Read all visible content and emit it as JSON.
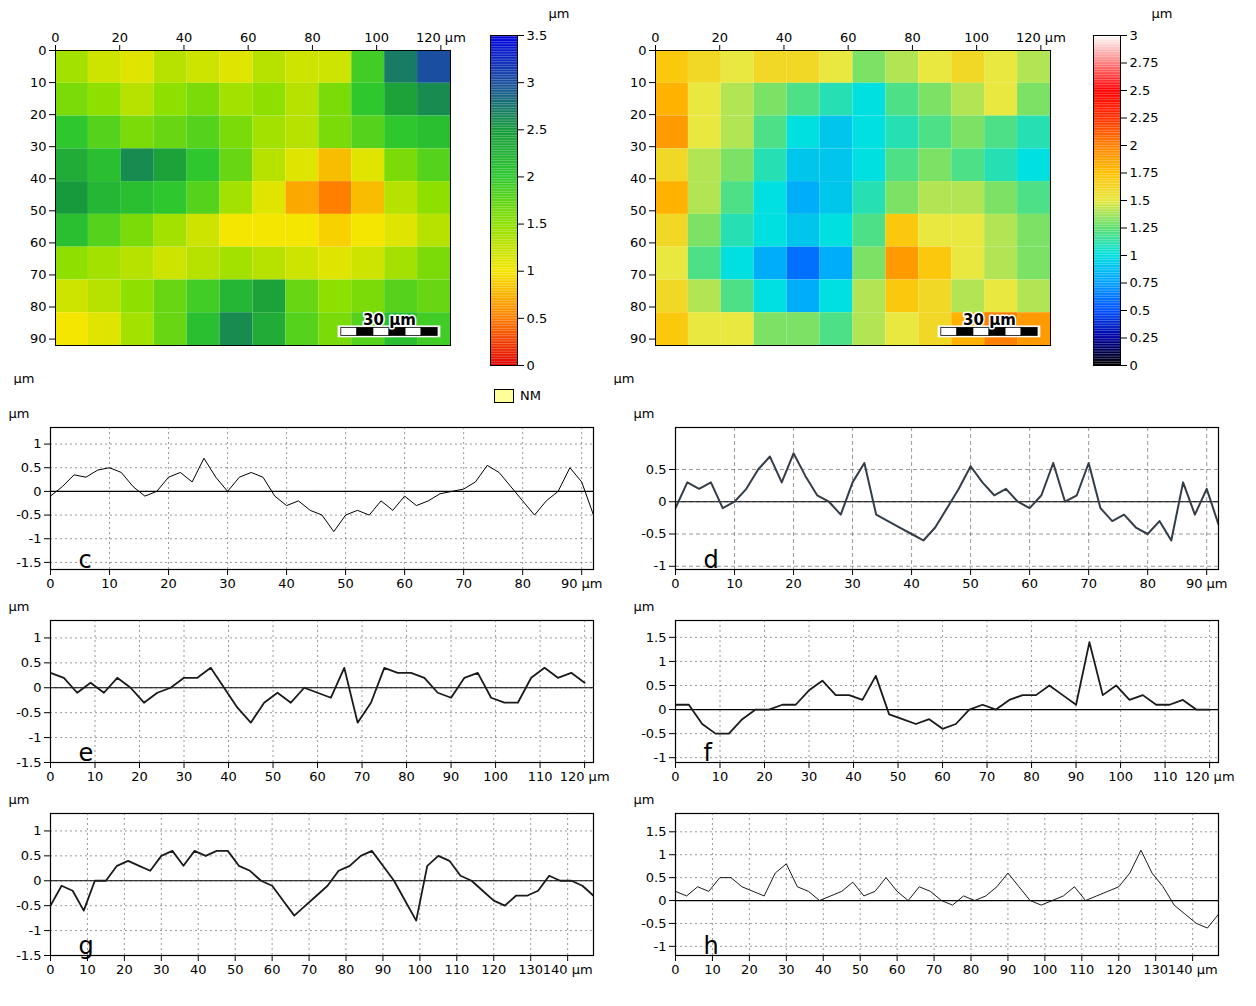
{
  "chart_data": [
    {
      "type": "heatmap",
      "xlim": [
        0,
        123
      ],
      "xticks": [
        0,
        20,
        40,
        60,
        80,
        100,
        {
          "value": 120,
          "label": "120 µm"
        }
      ],
      "ylim": [
        0,
        92
      ],
      "yticks": [
        0,
        10,
        20,
        30,
        40,
        50,
        60,
        70,
        80,
        90
      ],
      "y_label": "µm",
      "cells": [
        [
          1.4,
          1.2,
          1.1,
          1.3,
          1.2,
          1.1,
          1.3,
          1.2,
          1.2,
          1.9,
          2.7,
          3.0
        ],
        [
          1.6,
          1.5,
          1.3,
          1.5,
          1.6,
          1.4,
          1.5,
          1.3,
          1.6,
          2.0,
          2.4,
          2.6
        ],
        [
          2.0,
          1.8,
          1.6,
          1.7,
          1.8,
          1.6,
          1.4,
          1.3,
          1.6,
          1.8,
          2.0,
          2.1
        ],
        [
          2.3,
          2.1,
          2.6,
          2.4,
          2.0,
          1.7,
          1.3,
          1.1,
          0.8,
          1.1,
          1.6,
          1.8
        ],
        [
          2.5,
          2.2,
          2.1,
          2.0,
          1.8,
          1.4,
          1.1,
          0.7,
          0.5,
          0.8,
          1.3,
          1.5
        ],
        [
          2.1,
          1.8,
          1.6,
          1.4,
          1.2,
          1.0,
          1.0,
          1.0,
          0.9,
          1.0,
          1.1,
          1.3
        ],
        [
          1.5,
          1.4,
          1.3,
          1.2,
          1.3,
          1.4,
          1.3,
          1.2,
          1.1,
          1.2,
          1.4,
          1.6
        ],
        [
          1.2,
          1.3,
          1.5,
          1.7,
          1.9,
          2.2,
          2.4,
          1.7,
          1.5,
          1.6,
          1.8,
          1.7
        ],
        [
          1.0,
          1.1,
          1.4,
          1.7,
          2.1,
          2.6,
          2.3,
          1.8,
          1.6,
          1.8,
          2.1,
          1.9
        ]
      ],
      "colorbar": {
        "range": [
          0,
          3.5
        ],
        "ticks": [
          0,
          0.5,
          1,
          1.5,
          2,
          2.5,
          3,
          3.5
        ],
        "label": "µm",
        "stops": [
          0,
          0.5,
          1,
          1.5,
          2,
          2.5,
          3,
          3.5
        ],
        "colors": [
          "#e00000",
          "#ff7f00",
          "#f5e600",
          "#8ee000",
          "#2ec82e",
          "#169a3c",
          "#1a4fa0",
          "#0000e0"
        ]
      },
      "scale_bar": {
        "length": 30,
        "label": "30 µm"
      },
      "nm_label": "NM"
    },
    {
      "type": "heatmap",
      "xlim": [
        0,
        123
      ],
      "xticks": [
        0,
        20,
        40,
        60,
        80,
        100,
        {
          "value": 120,
          "label": "120 µm"
        }
      ],
      "ylim": [
        0,
        92
      ],
      "yticks": [
        0,
        10,
        20,
        30,
        40,
        50,
        60,
        70,
        80,
        90
      ],
      "y_label": "µm",
      "cells": [
        [
          1.7,
          1.6,
          1.5,
          1.6,
          1.6,
          1.5,
          1.3,
          1.4,
          1.5,
          1.6,
          1.5,
          1.4
        ],
        [
          1.8,
          1.5,
          1.4,
          1.3,
          1.2,
          1.1,
          1.0,
          1.2,
          1.3,
          1.4,
          1.5,
          1.3
        ],
        [
          1.9,
          1.5,
          1.4,
          1.2,
          1.0,
          0.9,
          1.0,
          1.1,
          1.2,
          1.3,
          1.2,
          1.1
        ],
        [
          1.6,
          1.4,
          1.3,
          1.1,
          0.9,
          0.9,
          1.0,
          1.2,
          1.3,
          1.2,
          1.1,
          1.0
        ],
        [
          1.8,
          1.4,
          1.2,
          1.0,
          0.8,
          0.9,
          1.1,
          1.3,
          1.4,
          1.4,
          1.3,
          1.2
        ],
        [
          1.6,
          1.3,
          1.1,
          1.0,
          0.9,
          1.0,
          1.2,
          1.7,
          1.5,
          1.5,
          1.4,
          1.3
        ],
        [
          1.5,
          1.2,
          1.0,
          0.8,
          0.6,
          0.8,
          1.3,
          1.9,
          1.7,
          1.5,
          1.4,
          1.3
        ],
        [
          1.6,
          1.4,
          1.2,
          1.0,
          0.8,
          1.0,
          1.4,
          1.7,
          1.6,
          1.4,
          1.5,
          1.4
        ],
        [
          1.7,
          1.5,
          1.5,
          1.3,
          1.3,
          1.2,
          1.4,
          1.5,
          1.6,
          1.8,
          2.0,
          1.9
        ]
      ],
      "colorbar": {
        "range": [
          0,
          3
        ],
        "ticks": [
          0,
          0.25,
          0.5,
          0.75,
          1,
          1.25,
          1.5,
          1.75,
          2,
          2.25,
          2.5,
          2.75,
          3
        ],
        "label": "µm",
        "stops": [
          0,
          0.25,
          0.5,
          0.75,
          1,
          1.25,
          1.5,
          1.75,
          2,
          2.25,
          2.5,
          3
        ],
        "colors": [
          "#000000",
          "#0000a0",
          "#0050ff",
          "#00a0ff",
          "#00e0e0",
          "#60e070",
          "#e8e840",
          "#ffc000",
          "#ff8000",
          "#ff3000",
          "#ff0000",
          "#ffffff"
        ]
      },
      "scale_bar": {
        "length": 30,
        "label": "30 µm"
      }
    },
    {
      "type": "line",
      "label": "c",
      "color": "#000000",
      "grid": true,
      "y_label": "µm",
      "xlim": [
        0,
        92
      ],
      "xticks": [
        0,
        10,
        20,
        30,
        40,
        50,
        60,
        70,
        80,
        {
          "value": 90,
          "label": "90 µm"
        }
      ],
      "ylim": [
        -1.65,
        1.35
      ],
      "yticks": [
        1,
        0.5,
        0,
        -0.5,
        -1,
        -1.5
      ],
      "x": [
        0,
        2,
        4,
        6,
        8,
        10,
        12,
        14,
        16,
        18,
        20,
        22,
        24,
        26,
        28,
        30,
        32,
        34,
        36,
        38,
        40,
        42,
        44,
        46,
        48,
        50,
        52,
        54,
        56,
        58,
        60,
        62,
        64,
        66,
        68,
        70,
        72,
        74,
        76,
        78,
        80,
        82,
        84,
        86,
        88,
        90,
        92
      ],
      "values": [
        -0.1,
        0.1,
        0.35,
        0.3,
        0.45,
        0.5,
        0.4,
        0.1,
        -0.1,
        0.0,
        0.3,
        0.4,
        0.2,
        0.7,
        0.3,
        0.0,
        0.3,
        0.4,
        0.3,
        -0.1,
        -0.3,
        -0.2,
        -0.4,
        -0.5,
        -0.85,
        -0.5,
        -0.4,
        -0.5,
        -0.2,
        -0.4,
        -0.1,
        -0.3,
        -0.2,
        -0.05,
        0.0,
        0.05,
        0.2,
        0.55,
        0.4,
        0.1,
        -0.2,
        -0.5,
        -0.2,
        0.0,
        0.5,
        0.2,
        -0.5
      ]
    },
    {
      "type": "line",
      "label": "d",
      "color": "#333d47",
      "grid": true,
      "y_label": "µm",
      "xlim": [
        0,
        92
      ],
      "xticks": [
        0,
        10,
        20,
        30,
        40,
        50,
        60,
        70,
        80,
        {
          "value": 90,
          "label": "90 µm"
        }
      ],
      "ylim": [
        -1.05,
        1.15
      ],
      "yticks": [
        0.5,
        0,
        -0.5,
        -1
      ],
      "x": [
        0,
        2,
        4,
        6,
        8,
        10,
        12,
        14,
        16,
        18,
        20,
        22,
        24,
        26,
        28,
        30,
        32,
        34,
        36,
        38,
        40,
        42,
        44,
        46,
        48,
        50,
        52,
        54,
        56,
        58,
        60,
        62,
        64,
        66,
        68,
        70,
        72,
        74,
        76,
        78,
        80,
        82,
        84,
        86,
        88,
        90,
        92
      ],
      "values": [
        -0.1,
        0.3,
        0.2,
        0.3,
        -0.1,
        0.0,
        0.2,
        0.5,
        0.7,
        0.3,
        0.75,
        0.4,
        0.1,
        0.0,
        -0.2,
        0.3,
        0.6,
        -0.2,
        -0.3,
        -0.4,
        -0.5,
        -0.6,
        -0.4,
        -0.1,
        0.2,
        0.55,
        0.3,
        0.1,
        0.2,
        0.0,
        -0.1,
        0.1,
        0.6,
        0.0,
        0.1,
        0.6,
        -0.1,
        -0.3,
        -0.2,
        -0.4,
        -0.5,
        -0.3,
        -0.6,
        0.3,
        -0.2,
        0.2,
        -0.35
      ]
    },
    {
      "type": "line",
      "label": "e",
      "color": "#1a1a1a",
      "grid": true,
      "y_label": "µm",
      "xlim": [
        0,
        122
      ],
      "xticks": [
        0,
        10,
        20,
        30,
        40,
        50,
        60,
        70,
        80,
        90,
        100,
        110,
        {
          "value": 120,
          "label": "120 µm"
        }
      ],
      "ylim": [
        -1.5,
        1.35
      ],
      "yticks": [
        1,
        0.5,
        0,
        -0.5,
        -1,
        -1.5
      ],
      "x": [
        0,
        3,
        6,
        9,
        12,
        15,
        18,
        21,
        24,
        27,
        30,
        33,
        36,
        39,
        42,
        45,
        48,
        51,
        54,
        57,
        60,
        63,
        66,
        69,
        72,
        75,
        78,
        81,
        84,
        87,
        90,
        93,
        96,
        99,
        102,
        105,
        108,
        111,
        114,
        117,
        120
      ],
      "values": [
        0.3,
        0.2,
        -0.1,
        0.1,
        -0.1,
        0.2,
        0.0,
        -0.3,
        -0.1,
        0.0,
        0.2,
        0.2,
        0.4,
        0.0,
        -0.4,
        -0.7,
        -0.3,
        -0.1,
        -0.3,
        0.0,
        -0.1,
        -0.2,
        0.4,
        -0.7,
        -0.3,
        0.4,
        0.3,
        0.3,
        0.2,
        -0.1,
        -0.2,
        0.2,
        0.3,
        -0.2,
        -0.3,
        -0.3,
        0.2,
        0.4,
        0.2,
        0.3,
        0.1
      ]
    },
    {
      "type": "line",
      "label": "f",
      "color": "#1a1a1a",
      "grid": true,
      "y_label": "µm",
      "xlim": [
        0,
        122
      ],
      "xticks": [
        0,
        10,
        20,
        30,
        40,
        50,
        60,
        70,
        80,
        90,
        100,
        110,
        {
          "value": 120,
          "label": "120 µm"
        }
      ],
      "ylim": [
        -1.1,
        1.85
      ],
      "yticks": [
        1.5,
        1,
        0.5,
        0,
        -0.5,
        -1
      ],
      "x": [
        0,
        3,
        6,
        9,
        12,
        15,
        18,
        21,
        24,
        27,
        30,
        33,
        36,
        39,
        42,
        45,
        48,
        51,
        54,
        57,
        60,
        63,
        66,
        69,
        72,
        75,
        78,
        81,
        84,
        87,
        90,
        93,
        96,
        99,
        102,
        105,
        108,
        111,
        114,
        117,
        120
      ],
      "values": [
        0.1,
        0.1,
        -0.3,
        -0.5,
        -0.5,
        -0.2,
        0.0,
        0.0,
        0.1,
        0.1,
        0.4,
        0.6,
        0.3,
        0.3,
        0.2,
        0.7,
        -0.1,
        -0.2,
        -0.3,
        -0.2,
        -0.4,
        -0.3,
        0.0,
        0.1,
        0.0,
        0.2,
        0.3,
        0.3,
        0.5,
        0.3,
        0.1,
        1.4,
        0.3,
        0.5,
        0.2,
        0.3,
        0.1,
        0.1,
        0.2,
        0.0,
        0.0
      ]
    },
    {
      "type": "line",
      "label": "g",
      "color": "#1a1a1a",
      "grid": true,
      "y_label": "µm",
      "xlim": [
        0,
        147
      ],
      "xticks": [
        0,
        10,
        20,
        30,
        40,
        50,
        60,
        70,
        80,
        90,
        100,
        110,
        120,
        130,
        {
          "value": 140,
          "label": "140 µm"
        }
      ],
      "ylim": [
        -1.5,
        1.35
      ],
      "yticks": [
        1,
        0.5,
        0,
        -0.5,
        -1,
        -1.5
      ],
      "x": [
        0,
        3,
        6,
        9,
        12,
        15,
        18,
        21,
        24,
        27,
        30,
        33,
        36,
        39,
        42,
        45,
        48,
        51,
        54,
        57,
        60,
        63,
        66,
        69,
        72,
        75,
        78,
        81,
        84,
        87,
        90,
        93,
        96,
        99,
        102,
        105,
        108,
        111,
        114,
        117,
        120,
        123,
        126,
        129,
        132,
        135,
        138,
        141,
        144,
        147
      ],
      "values": [
        -0.5,
        -0.1,
        -0.2,
        -0.6,
        0.0,
        0.0,
        0.3,
        0.4,
        0.3,
        0.2,
        0.5,
        0.6,
        0.3,
        0.6,
        0.5,
        0.6,
        0.6,
        0.3,
        0.2,
        0.0,
        -0.1,
        -0.4,
        -0.7,
        -0.5,
        -0.3,
        -0.1,
        0.2,
        0.3,
        0.5,
        0.6,
        0.3,
        0.0,
        -0.4,
        -0.8,
        0.3,
        0.5,
        0.4,
        0.1,
        0.0,
        -0.2,
        -0.4,
        -0.5,
        -0.3,
        -0.3,
        -0.2,
        0.1,
        0.0,
        0.0,
        -0.1,
        -0.3
      ]
    },
    {
      "type": "line",
      "label": "h",
      "color": "#000000",
      "grid": true,
      "y_label": "µm",
      "xlim": [
        0,
        147
      ],
      "xticks": [
        0,
        10,
        20,
        30,
        40,
        50,
        60,
        70,
        80,
        90,
        100,
        110,
        120,
        130,
        {
          "value": 140,
          "label": "140 µm"
        }
      ],
      "ylim": [
        -1.2,
        1.9
      ],
      "yticks": [
        1.5,
        1,
        0.5,
        0,
        -0.5,
        -1
      ],
      "x": [
        0,
        3,
        6,
        9,
        12,
        15,
        18,
        21,
        24,
        27,
        30,
        33,
        36,
        39,
        42,
        45,
        48,
        51,
        54,
        57,
        60,
        63,
        66,
        69,
        72,
        75,
        78,
        81,
        84,
        87,
        90,
        93,
        96,
        99,
        102,
        105,
        108,
        111,
        114,
        117,
        120,
        123,
        126,
        129,
        132,
        135,
        138,
        141,
        144,
        147
      ],
      "values": [
        0.2,
        0.1,
        0.3,
        0.2,
        0.5,
        0.5,
        0.3,
        0.2,
        0.1,
        0.6,
        0.8,
        0.3,
        0.2,
        0.0,
        0.1,
        0.2,
        0.4,
        0.1,
        0.2,
        0.5,
        0.2,
        0.0,
        0.3,
        0.2,
        0.0,
        -0.1,
        0.1,
        0.0,
        0.1,
        0.3,
        0.6,
        0.3,
        0.0,
        -0.1,
        0.0,
        0.1,
        0.3,
        0.0,
        0.1,
        0.2,
        0.3,
        0.6,
        1.1,
        0.6,
        0.3,
        -0.1,
        -0.3,
        -0.5,
        -0.6,
        -0.3
      ]
    }
  ]
}
